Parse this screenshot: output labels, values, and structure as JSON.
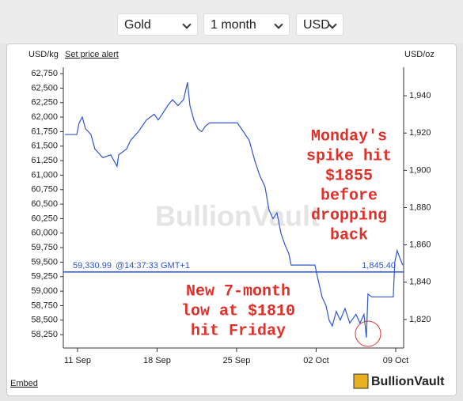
{
  "controls": {
    "metal": "Gold",
    "period": "1 month",
    "currency": "USD"
  },
  "chart_data": {
    "type": "line",
    "y_axis_label": "USD/kg",
    "link": "Set price alert",
    "y2_axis_label": "USD/oz",
    "watermark": "BullionVault",
    "x": [
      -1.11,
      -0.07,
      0.14,
      0.42,
      0.7,
      1.18,
      1.53,
      2.23,
      2.92,
      3.48,
      3.62,
      4.32,
      4.67,
      5.36,
      6.06,
      6.75,
      7.1,
      7.45,
      7.94,
      8.36,
      8.84,
      9.33,
      9.68,
      9.89,
      10.24,
      10.58,
      10.93,
      11.28,
      11.63,
      14.07,
      14.42,
      15.11,
      15.6,
      16.02,
      16.5,
      16.85,
      17.2,
      17.55,
      17.9,
      18.25,
      18.59,
      18.8,
      20.89,
      21.17,
      21.52,
      21.87,
      22.14,
      22.42,
      22.77,
      23.12,
      23.54,
      23.96,
      24.51,
      24.86,
      25.21,
      25.42,
      25.56,
      25.91,
      27.79,
      27.92,
      28.13,
      28.41,
      28.62
    ],
    "series": [
      {
        "color": "#2f55d4",
        "values": [
          61700,
          61700,
          61900,
          62000,
          61800,
          61700,
          61450,
          61300,
          61350,
          61150,
          61350,
          61450,
          61600,
          61750,
          61950,
          62050,
          61950,
          62050,
          62200,
          62300,
          62200,
          62300,
          62600,
          62200,
          61950,
          61800,
          61750,
          61850,
          61900,
          61900,
          61800,
          61600,
          61250,
          61000,
          60800,
          60400,
          60250,
          60350,
          60000,
          59800,
          59650,
          59450,
          59450,
          59200,
          58900,
          58750,
          58500,
          58400,
          58650,
          58500,
          58700,
          58450,
          58600,
          58450,
          58600,
          58200,
          58950,
          58900,
          58900,
          59500,
          59700,
          59550,
          59450
        ]
      }
    ],
    "xlim": [
      -1.25,
      28.7
    ],
    "xticks": [
      {
        "value": 0,
        "label": "11 Sep"
      },
      {
        "value": 7,
        "label": "18 Sep"
      },
      {
        "value": 14,
        "label": "25 Sep"
      },
      {
        "value": 21,
        "label": "02 Oct"
      },
      {
        "value": 28,
        "label": "09 Oct"
      }
    ],
    "ylim": [
      58020,
      62860
    ],
    "yticks": [
      {
        "value": 58250,
        "label": "58,250"
      },
      {
        "value": 58500,
        "label": "58,500"
      },
      {
        "value": 58750,
        "label": "58,750"
      },
      {
        "value": 59000,
        "label": "59,000"
      },
      {
        "value": 59250,
        "label": "59,250"
      },
      {
        "value": 59500,
        "label": "59,500"
      },
      {
        "value": 59750,
        "label": "59,750"
      },
      {
        "value": 60000,
        "label": "60,000"
      },
      {
        "value": 60250,
        "label": "60,250"
      },
      {
        "value": 60500,
        "label": "60,500"
      },
      {
        "value": 60750,
        "label": "60,750"
      },
      {
        "value": 61000,
        "label": "61,000"
      },
      {
        "value": 61250,
        "label": "61,250"
      },
      {
        "value": 61500,
        "label": "61,500"
      },
      {
        "value": 61750,
        "label": "61,750"
      },
      {
        "value": 62000,
        "label": "62,000"
      },
      {
        "value": 62250,
        "label": "62,250"
      },
      {
        "value": 62500,
        "label": "62,500"
      },
      {
        "value": 62750,
        "label": "62,750"
      }
    ],
    "y2lim": [
      1804.7,
      1955.3
    ],
    "y2ticks": [
      {
        "value": 1820,
        "label": "1,820"
      },
      {
        "value": 1840,
        "label": "1,840"
      },
      {
        "value": 1860,
        "label": "1,860"
      },
      {
        "value": 1880,
        "label": "1,880"
      },
      {
        "value": 1900,
        "label": "1,900"
      },
      {
        "value": 1920,
        "label": "1,920"
      },
      {
        "value": 1940,
        "label": "1,940"
      }
    ],
    "current_price": {
      "value": 59330.99,
      "label": "59,330.99",
      "time": "@14:37:33 GMT+1",
      "value_oz": 1845.4,
      "label_oz": "1,845.40"
    },
    "annotations": [
      {
        "lines": [
          "Monday's",
          "spike hit",
          "$1855",
          "before",
          "dropping",
          "back"
        ]
      },
      {
        "lines": [
          "New 7-month",
          "low at $1810",
          "hit Friday"
        ]
      }
    ]
  },
  "footer": {
    "embed": "Embed",
    "logo": "BullionVault"
  }
}
